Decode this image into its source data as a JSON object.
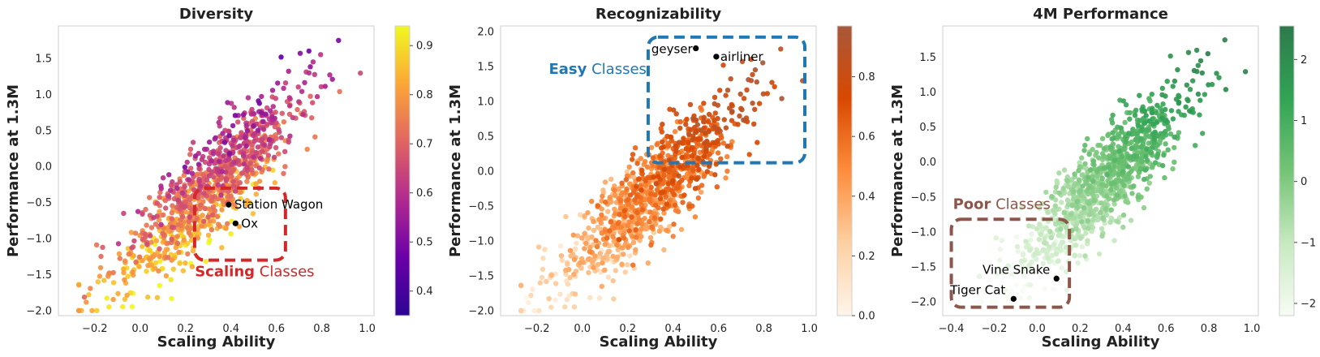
{
  "chart_data": [
    {
      "type": "scatter",
      "title": "Diversity",
      "xlabel": "Scaling Ability",
      "ylabel": "Performance at 1.3M",
      "xlim": [
        -0.36,
        1.03
      ],
      "ylim": [
        -2.07,
        1.95
      ],
      "xticks": [
        -0.2,
        0.0,
        0.2,
        0.4,
        0.6,
        0.8,
        1.0
      ],
      "xtick_labels": [
        "−0.2",
        "0.0",
        "0.2",
        "0.4",
        "0.6",
        "0.8",
        "1.0"
      ],
      "yticks": [
        -2.0,
        -1.5,
        -1.0,
        -0.5,
        0.0,
        0.5,
        1.0,
        1.5
      ],
      "ytick_labels": [
        "−2.0",
        "−1.5",
        "−1.0",
        "−0.5",
        "0.0",
        "0.5",
        "1.0",
        "1.5"
      ],
      "colormap": "plasma",
      "colorbar": {
        "range": [
          0.35,
          0.94
        ],
        "ticks": [
          0.4,
          0.5,
          0.6,
          0.7,
          0.8,
          0.9
        ],
        "tick_labels": [
          "0.4",
          "0.5",
          "0.6",
          "0.7",
          "0.8",
          "0.9"
        ],
        "stops": [
          "#2c0594",
          "#6a00a8",
          "#b12a90",
          "#e16462",
          "#fca636",
          "#f0f921"
        ]
      },
      "point_count": 1000,
      "color_by": "diversity (higher on lower-left)",
      "annotations": [
        {
          "label": "Station Wagon",
          "x": 0.39,
          "y": -0.53
        },
        {
          "label": "Ox",
          "x": 0.42,
          "y": -0.79
        }
      ],
      "highlight_region": {
        "x": [
          0.24,
          0.64
        ],
        "y": [
          -1.3,
          -0.3
        ],
        "label_bold": "Scaling",
        "label_rest": "Classes",
        "color": "#d62728"
      }
    },
    {
      "type": "scatter",
      "title": "Recognizability",
      "xlabel": "Scaling Ability",
      "ylabel": "Performance at 1.3M",
      "xlim": [
        -0.36,
        1.03
      ],
      "ylim": [
        -2.07,
        2.08
      ],
      "xticks": [
        -0.2,
        0.0,
        0.2,
        0.4,
        0.6,
        0.8,
        1.0
      ],
      "xtick_labels": [
        "−0.2",
        "0.0",
        "0.2",
        "0.4",
        "0.6",
        "0.8",
        "1.0"
      ],
      "yticks": [
        -2.0,
        -1.5,
        -1.0,
        -0.5,
        0.0,
        0.5,
        1.0,
        1.5,
        2.0
      ],
      "ytick_labels": [
        "−2.0",
        "−1.5",
        "−1.0",
        "−0.5",
        "0.0",
        "0.5",
        "1.0",
        "1.5",
        "2.0"
      ],
      "colormap": "oranges",
      "colorbar": {
        "range": [
          0.0,
          0.97
        ],
        "ticks": [
          0.0,
          0.2,
          0.4,
          0.6,
          0.8
        ],
        "tick_labels": [
          "0.0",
          "0.2",
          "0.4",
          "0.6",
          "0.8"
        ],
        "stops": [
          "#fff5eb",
          "#fdd0a2",
          "#fd8d3c",
          "#d94801",
          "#a8583a"
        ]
      },
      "point_count": 1000,
      "color_by": "recognizability (higher on upper-right)",
      "annotations": [
        {
          "label": "geyser",
          "x": 0.5,
          "y": 1.76
        },
        {
          "label": "airliner",
          "x": 0.59,
          "y": 1.64
        }
      ],
      "highlight_region": {
        "x": [
          0.29,
          0.98
        ],
        "y": [
          0.12,
          1.92
        ],
        "label_bold": "Easy",
        "label_rest": "Classes",
        "color": "#1f77b4"
      }
    },
    {
      "type": "scatter",
      "title": "4M Performance",
      "xlabel": "Scaling Ability",
      "ylabel": "Performance at 1.3M",
      "xlim": [
        -0.44,
        1.03
      ],
      "ylim": [
        -2.2,
        1.95
      ],
      "xticks": [
        -0.4,
        -0.2,
        0.0,
        0.2,
        0.4,
        0.6,
        0.8,
        1.0
      ],
      "xtick_labels": [
        "−0.4",
        "−0.2",
        "0.0",
        "0.2",
        "0.4",
        "0.6",
        "0.8",
        "1.0"
      ],
      "yticks": [
        -2.0,
        -1.5,
        -1.0,
        -0.5,
        0.0,
        0.5,
        1.0,
        1.5
      ],
      "ytick_labels": [
        "−2.0",
        "−1.5",
        "−1.0",
        "−0.5",
        "0.0",
        "0.5",
        "1.0",
        "1.5"
      ],
      "colormap": "greens",
      "colorbar": {
        "range": [
          -2.2,
          2.55
        ],
        "ticks": [
          -2,
          -1,
          0,
          1,
          2
        ],
        "tick_labels": [
          "−2",
          "−1",
          "0",
          "1",
          "2"
        ],
        "stops": [
          "#f7fcf5",
          "#c7e9c0",
          "#74c476",
          "#31a354",
          "#2d7a4c"
        ]
      },
      "point_count": 1000,
      "color_by": "performance at 4M (higher on upper-right)",
      "annotations": [
        {
          "label": "Vine Snake",
          "x": 0.09,
          "y": -1.67
        },
        {
          "label": "Tiger Cat",
          "x": -0.11,
          "y": -1.96
        }
      ],
      "highlight_region": {
        "x": [
          -0.4,
          0.15
        ],
        "y": [
          -2.08,
          -0.82
        ],
        "label_bold": "Poor",
        "label_rest": "Classes",
        "color": "#8c564b"
      }
    }
  ]
}
